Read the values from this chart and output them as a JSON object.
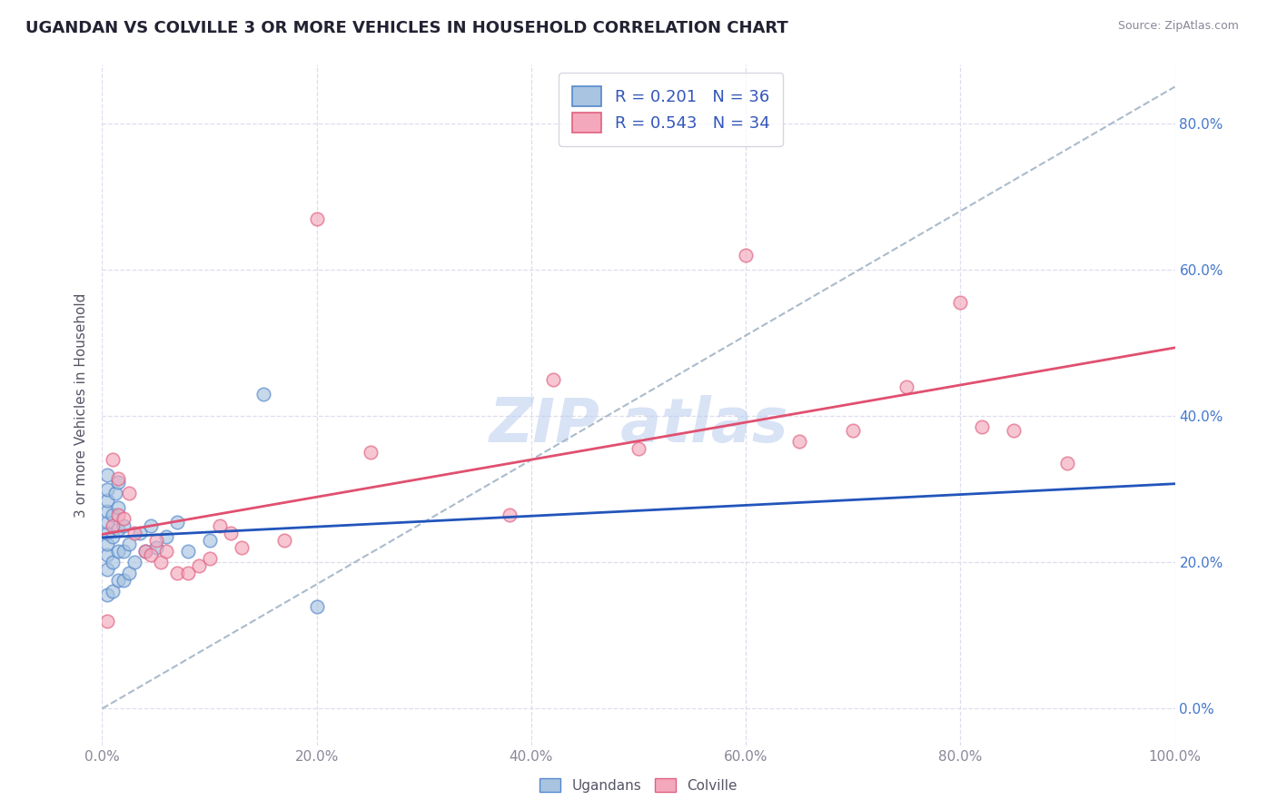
{
  "title": "UGANDAN VS COLVILLE 3 OR MORE VEHICLES IN HOUSEHOLD CORRELATION CHART",
  "source": "Source: ZipAtlas.com",
  "ylabel": "3 or more Vehicles in Household",
  "xlim": [
    0.0,
    1.0
  ],
  "ylim": [
    -0.05,
    0.88
  ],
  "x_ticks": [
    0.0,
    0.2,
    0.4,
    0.6,
    0.8,
    1.0
  ],
  "x_tick_labels": [
    "0.0%",
    "20.0%",
    "40.0%",
    "60.0%",
    "80.0%",
    "100.0%"
  ],
  "y_ticks": [
    0.0,
    0.2,
    0.4,
    0.6,
    0.8
  ],
  "y_tick_labels": [
    "0.0%",
    "20.0%",
    "40.0%",
    "60.0%",
    "80.0%"
  ],
  "ugandan_color": "#a8c4e0",
  "colville_color": "#f4a8bc",
  "ugandan_edge": "#5588cc",
  "colville_edge": "#e06080",
  "trend_ugandan": "#2255bb",
  "trend_colville": "#e05070",
  "trend_dashed_color": "#aabbcc",
  "legend_r_ugandan": "0.201",
  "legend_n_ugandan": "36",
  "legend_r_colville": "0.543",
  "legend_n_colville": "34",
  "ugandan_x": [
    0.005,
    0.005,
    0.005,
    0.005,
    0.005,
    0.005,
    0.005,
    0.005,
    0.005,
    0.005,
    0.01,
    0.01,
    0.01,
    0.01,
    0.012,
    0.015,
    0.015,
    0.015,
    0.015,
    0.015,
    0.02,
    0.02,
    0.02,
    0.025,
    0.025,
    0.03,
    0.035,
    0.04,
    0.045,
    0.05,
    0.06,
    0.07,
    0.08,
    0.1,
    0.15,
    0.2
  ],
  "ugandan_y": [
    0.155,
    0.19,
    0.21,
    0.225,
    0.24,
    0.255,
    0.27,
    0.285,
    0.3,
    0.32,
    0.16,
    0.2,
    0.235,
    0.265,
    0.295,
    0.175,
    0.215,
    0.245,
    0.275,
    0.31,
    0.175,
    0.215,
    0.25,
    0.185,
    0.225,
    0.2,
    0.24,
    0.215,
    0.25,
    0.22,
    0.235,
    0.255,
    0.215,
    0.23,
    0.43,
    0.14
  ],
  "colville_x": [
    0.005,
    0.01,
    0.01,
    0.015,
    0.015,
    0.02,
    0.025,
    0.03,
    0.04,
    0.045,
    0.05,
    0.055,
    0.06,
    0.07,
    0.08,
    0.09,
    0.1,
    0.11,
    0.12,
    0.13,
    0.17,
    0.2,
    0.25,
    0.38,
    0.42,
    0.5,
    0.6,
    0.65,
    0.7,
    0.75,
    0.8,
    0.82,
    0.85,
    0.9
  ],
  "colville_y": [
    0.12,
    0.25,
    0.34,
    0.265,
    0.315,
    0.26,
    0.295,
    0.24,
    0.215,
    0.21,
    0.23,
    0.2,
    0.215,
    0.185,
    0.185,
    0.195,
    0.205,
    0.25,
    0.24,
    0.22,
    0.23,
    0.67,
    0.35,
    0.265,
    0.45,
    0.355,
    0.62,
    0.365,
    0.38,
    0.44,
    0.555,
    0.385,
    0.38,
    0.335
  ],
  "marker_size": 110,
  "alpha": 0.65,
  "background_color": "#ffffff",
  "grid_color": "#ddddee",
  "watermark_color": "#b8ccee",
  "title_fontsize": 13,
  "tick_fontsize": 11,
  "legend_fontsize": 13
}
